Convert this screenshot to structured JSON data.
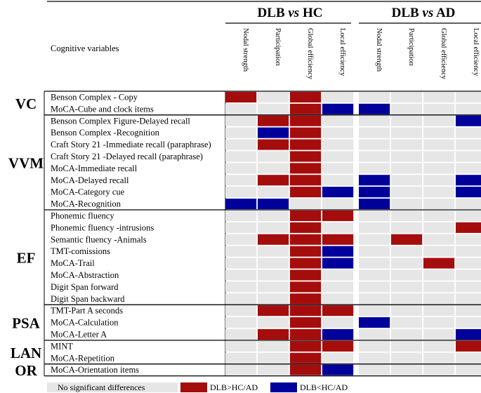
{
  "chart_data": {
    "type": "heatmap",
    "header_label": "Cognitive variables",
    "panels": [
      {
        "title_a": "DLB ",
        "title_vs": "vs",
        "title_b": " HC"
      },
      {
        "title_a": "DLB ",
        "title_vs": "vs",
        "title_b": " AD"
      }
    ],
    "columns": [
      "Nodal strength",
      "Participation",
      "Global efficiency",
      "Local efficiency"
    ],
    "groups": [
      {
        "label": "VC",
        "rows": [
          0,
          1
        ]
      },
      {
        "label": "VVM",
        "rows": [
          2,
          3,
          4,
          5,
          6,
          7,
          8,
          9
        ]
      },
      {
        "label": "EF",
        "rows": [
          10,
          11,
          12,
          13,
          14,
          15,
          16,
          17
        ]
      },
      {
        "label": "PSA",
        "rows": [
          18,
          19,
          20
        ]
      },
      {
        "label": "LAN",
        "rows": [
          21,
          22
        ]
      },
      {
        "label": "OR",
        "rows": [
          23
        ]
      }
    ],
    "rows": [
      {
        "name": "Benson Complex           - Copy",
        "hc": [
          1,
          0,
          1,
          0
        ],
        "ad": [
          0,
          0,
          0,
          0
        ]
      },
      {
        "name": "MoCA-Cube and clock items",
        "hc": [
          0,
          0,
          1,
          -1
        ],
        "ad": [
          -1,
          0,
          0,
          0
        ]
      },
      {
        "name": "Benson Complex Figure-Delayed recall",
        "hc": [
          0,
          1,
          1,
          0
        ],
        "ad": [
          0,
          0,
          0,
          -1
        ]
      },
      {
        "name": "Benson Complex           -Recognition",
        "hc": [
          0,
          -1,
          1,
          0
        ],
        "ad": [
          0,
          0,
          0,
          0
        ]
      },
      {
        "name": "Craft Story 21 -Immediate recall (paraphrase)",
        "hc": [
          0,
          1,
          1,
          0
        ],
        "ad": [
          0,
          0,
          0,
          0
        ]
      },
      {
        "name": "Craft Story 21 -Delayed recall (paraphrase)",
        "hc": [
          0,
          0,
          1,
          0
        ],
        "ad": [
          0,
          0,
          0,
          0
        ]
      },
      {
        "name": "MoCA-Immediate recall",
        "hc": [
          0,
          0,
          1,
          0
        ],
        "ad": [
          0,
          0,
          0,
          0
        ]
      },
      {
        "name": "MoCA-Delayed recall",
        "hc": [
          0,
          1,
          1,
          0
        ],
        "ad": [
          -1,
          0,
          0,
          -1
        ]
      },
      {
        "name": "MoCA-Category cue",
        "hc": [
          0,
          0,
          1,
          -1
        ],
        "ad": [
          -1,
          0,
          0,
          -1
        ]
      },
      {
        "name": "MoCA-Recognition",
        "hc": [
          -1,
          -1,
          0,
          0
        ],
        "ad": [
          -1,
          0,
          0,
          0
        ]
      },
      {
        "name": "Phonemic fluency",
        "hc": [
          0,
          0,
          1,
          1
        ],
        "ad": [
          0,
          0,
          0,
          0
        ]
      },
      {
        "name": "Phonemic fluency -intrusions",
        "hc": [
          0,
          0,
          1,
          0
        ],
        "ad": [
          0,
          0,
          0,
          1
        ]
      },
      {
        "name": "Semantic fluency -Animals",
        "hc": [
          0,
          1,
          1,
          1
        ],
        "ad": [
          0,
          1,
          0,
          0
        ]
      },
      {
        "name": "TMT-comissions",
        "hc": [
          0,
          0,
          1,
          -1
        ],
        "ad": [
          0,
          0,
          0,
          0
        ]
      },
      {
        "name": "MoCA-Trail",
        "hc": [
          0,
          0,
          1,
          -1
        ],
        "ad": [
          0,
          0,
          1,
          0
        ]
      },
      {
        "name": "MoCA-Abstraction",
        "hc": [
          0,
          0,
          1,
          0
        ],
        "ad": [
          0,
          0,
          0,
          0
        ]
      },
      {
        "name": "Digit Span forward",
        "hc": [
          0,
          0,
          1,
          0
        ],
        "ad": [
          0,
          0,
          0,
          0
        ]
      },
      {
        "name": "Digit Span backward",
        "hc": [
          0,
          0,
          1,
          0
        ],
        "ad": [
          0,
          0,
          0,
          0
        ]
      },
      {
        "name": "TMT-Part A seconds",
        "hc": [
          0,
          1,
          1,
          1
        ],
        "ad": [
          0,
          0,
          0,
          0
        ]
      },
      {
        "name": "MoCA-Calculation",
        "hc": [
          0,
          0,
          1,
          0
        ],
        "ad": [
          -1,
          0,
          0,
          0
        ]
      },
      {
        "name": "MoCA-Letter A",
        "hc": [
          0,
          1,
          1,
          -1
        ],
        "ad": [
          0,
          0,
          0,
          -1
        ]
      },
      {
        "name": "MINT",
        "hc": [
          0,
          0,
          1,
          1
        ],
        "ad": [
          0,
          0,
          0,
          1
        ]
      },
      {
        "name": "MoCA-Repetition",
        "hc": [
          0,
          0,
          1,
          0
        ],
        "ad": [
          0,
          0,
          0,
          0
        ]
      },
      {
        "name": "MoCA-Orientation items",
        "hc": [
          0,
          0,
          1,
          -1
        ],
        "ad": [
          0,
          0,
          0,
          0
        ]
      }
    ],
    "legend": [
      {
        "label": "No significant differences",
        "value": 0
      },
      {
        "label": "DLB>HC/AD",
        "value": 1
      },
      {
        "label": "DLB<HC/AD",
        "value": -1
      }
    ],
    "colors": {
      "0": "#e6e6e6",
      "1": "#a50d0d",
      "-1": "#00009b"
    }
  }
}
